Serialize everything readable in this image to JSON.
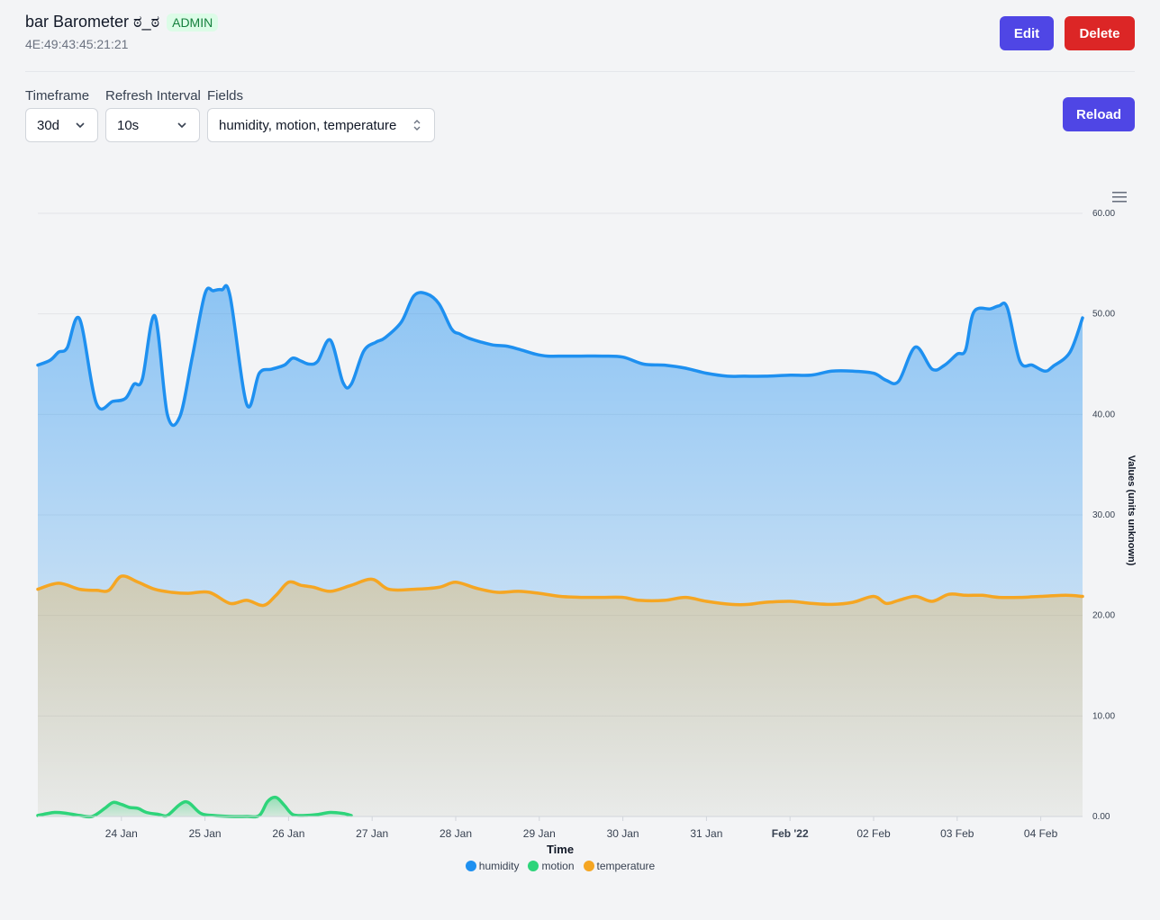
{
  "header": {
    "title": "bar Barometer ಠ_ಠ",
    "badge": "ADMIN",
    "device_id": "4E:49:43:45:21:21"
  },
  "buttons": {
    "edit": "Edit",
    "delete": "Delete",
    "reload": "Reload"
  },
  "controls": {
    "timeframe_label": "Timeframe",
    "timeframe_value": "30d",
    "refresh_label": "Refresh Interval",
    "refresh_value": "10s",
    "fields_label": "Fields",
    "fields_value": "humidity, motion, temperature"
  },
  "colors": {
    "humidity": "#1e90f0",
    "motion": "#2ed47a",
    "temperature": "#f5a623",
    "primary_button": "#4f46e5",
    "danger_button": "#dc2626"
  },
  "chart_data": {
    "type": "area",
    "xlabel": "Time",
    "ylabel": "Values (units unknown)",
    "ylim": [
      0,
      60
    ],
    "yticks": [
      "0.00",
      "10.00",
      "20.00",
      "30.00",
      "40.00",
      "50.00",
      "60.00"
    ],
    "xticks": [
      {
        "label": "24 Jan",
        "day": 24,
        "bold": false
      },
      {
        "label": "25 Jan",
        "day": 25,
        "bold": false
      },
      {
        "label": "26 Jan",
        "day": 26,
        "bold": false
      },
      {
        "label": "27 Jan",
        "day": 27,
        "bold": false
      },
      {
        "label": "28 Jan",
        "day": 28,
        "bold": false
      },
      {
        "label": "29 Jan",
        "day": 29,
        "bold": false
      },
      {
        "label": "30 Jan",
        "day": 30,
        "bold": false
      },
      {
        "label": "31 Jan",
        "day": 31,
        "bold": false
      },
      {
        "label": "Feb '22",
        "day": 32,
        "bold": true
      },
      {
        "label": "02 Feb",
        "day": 33,
        "bold": false
      },
      {
        "label": "03 Feb",
        "day": 34,
        "bold": false
      },
      {
        "label": "04 Feb",
        "day": 35,
        "bold": false
      }
    ],
    "xrange_days": [
      23.0,
      35.5
    ],
    "legend_position": "bottom-center",
    "grid": true,
    "series": [
      {
        "name": "humidity",
        "x": [
          23.0,
          23.15,
          23.25,
          23.35,
          23.5,
          23.7,
          23.9,
          24.05,
          24.15,
          24.25,
          24.4,
          24.55,
          24.7,
          24.85,
          25.0,
          25.1,
          25.2,
          25.3,
          25.5,
          25.65,
          25.8,
          25.95,
          26.05,
          26.15,
          26.25,
          26.35,
          26.5,
          26.65,
          26.75,
          26.9,
          27.05,
          27.15,
          27.35,
          27.5,
          27.65,
          27.8,
          27.95,
          28.05,
          28.15,
          28.3,
          28.45,
          28.6,
          28.75,
          28.95,
          29.1,
          29.3,
          29.5,
          29.75,
          30.0,
          30.25,
          30.5,
          30.75,
          31.0,
          31.25,
          31.45,
          31.7,
          32.0,
          32.25,
          32.5,
          32.75,
          33.0,
          33.15,
          33.3,
          33.5,
          33.7,
          33.85,
          34.0,
          34.1,
          34.2,
          34.4,
          34.5,
          34.6,
          34.75,
          34.9,
          35.05,
          35.15,
          35.35,
          35.5
        ],
        "values": [
          44.9,
          45.4,
          46.2,
          46.6,
          49.5,
          41.1,
          41.3,
          41.6,
          43.0,
          43.5,
          49.8,
          40.0,
          39.8,
          45.8,
          52.0,
          52.3,
          52.4,
          51.8,
          41.0,
          44.1,
          44.5,
          44.9,
          45.6,
          45.3,
          45.0,
          45.3,
          47.4,
          43.2,
          43.0,
          46.3,
          47.2,
          47.6,
          49.2,
          51.8,
          52.0,
          51.0,
          48.5,
          48.0,
          47.6,
          47.2,
          46.9,
          46.8,
          46.5,
          46.0,
          45.8,
          45.8,
          45.8,
          45.8,
          45.7,
          45.0,
          44.9,
          44.6,
          44.1,
          43.8,
          43.8,
          43.8,
          43.9,
          43.9,
          44.3,
          44.3,
          44.1,
          43.4,
          43.3,
          46.7,
          44.5,
          44.9,
          46.0,
          46.4,
          50.2,
          50.5,
          50.8,
          50.6,
          45.3,
          44.9,
          44.3,
          44.8,
          46.2,
          49.6
        ]
      },
      {
        "name": "motion",
        "x": [
          23.0,
          23.2,
          23.35,
          23.5,
          23.65,
          23.8,
          23.9,
          24.0,
          24.1,
          24.2,
          24.3,
          24.45,
          24.55,
          24.7,
          24.8,
          24.95,
          25.1,
          25.3,
          25.5,
          25.65,
          25.75,
          25.85,
          25.95,
          26.05,
          26.2,
          26.35,
          26.5,
          26.65,
          26.75
        ],
        "values": [
          0.1,
          0.4,
          0.3,
          0.1,
          0.0,
          0.8,
          1.4,
          1.2,
          0.9,
          0.8,
          0.4,
          0.2,
          0.1,
          1.2,
          1.4,
          0.3,
          0.1,
          0.0,
          0.0,
          0.1,
          1.5,
          1.9,
          1.1,
          0.2,
          0.1,
          0.2,
          0.4,
          0.3,
          0.1
        ]
      },
      {
        "name": "temperature",
        "x": [
          23.0,
          23.25,
          23.5,
          23.7,
          23.85,
          24.0,
          24.2,
          24.4,
          24.6,
          24.8,
          25.05,
          25.3,
          25.5,
          25.7,
          25.85,
          26.0,
          26.15,
          26.3,
          26.5,
          26.75,
          27.0,
          27.2,
          27.5,
          27.8,
          28.0,
          28.25,
          28.5,
          28.75,
          29.0,
          29.25,
          29.5,
          29.75,
          30.0,
          30.2,
          30.5,
          30.75,
          31.0,
          31.3,
          31.5,
          31.7,
          32.0,
          32.25,
          32.5,
          32.75,
          33.0,
          33.15,
          33.3,
          33.5,
          33.7,
          33.9,
          34.1,
          34.3,
          34.5,
          34.75,
          35.0,
          35.3,
          35.5
        ],
        "values": [
          22.6,
          23.2,
          22.6,
          22.5,
          22.5,
          23.9,
          23.3,
          22.6,
          22.3,
          22.2,
          22.3,
          21.2,
          21.5,
          21.0,
          22.0,
          23.3,
          23.0,
          22.8,
          22.4,
          23.0,
          23.6,
          22.6,
          22.6,
          22.8,
          23.3,
          22.7,
          22.3,
          22.4,
          22.2,
          21.9,
          21.8,
          21.8,
          21.8,
          21.5,
          21.5,
          21.8,
          21.4,
          21.1,
          21.1,
          21.3,
          21.4,
          21.2,
          21.1,
          21.3,
          21.9,
          21.2,
          21.5,
          21.9,
          21.4,
          22.1,
          22.0,
          22.0,
          21.8,
          21.8,
          21.9,
          22.0,
          21.9
        ]
      }
    ]
  }
}
